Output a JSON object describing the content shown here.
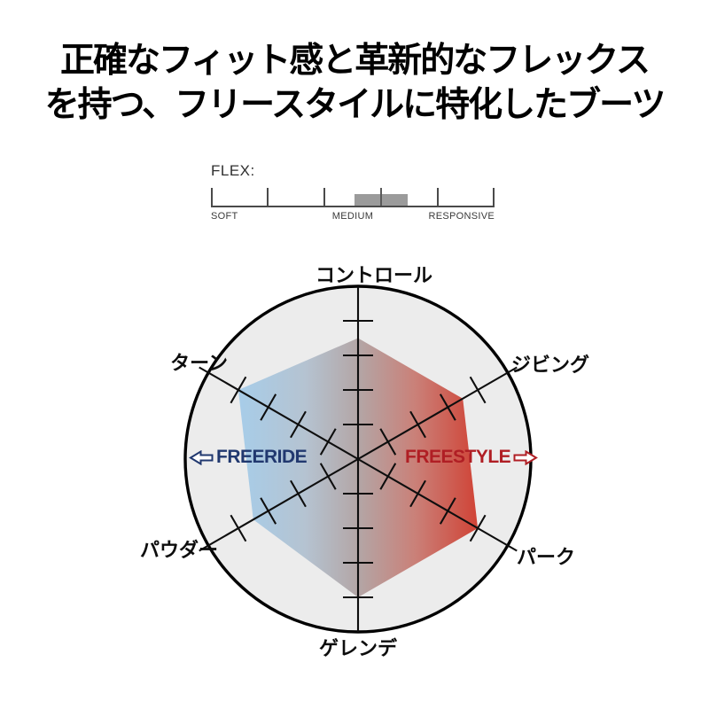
{
  "heading": {
    "line1": "正確なフィット感と革新的なフレックス",
    "line2": "を持つ、フリースタイルに特化したブーツ"
  },
  "flex_meter": {
    "title": "FLEX:",
    "scale_labels": [
      "SOFT",
      "MEDIUM",
      "RESPONSIVE"
    ],
    "indicator_position_pct": 60,
    "colors": {
      "scale": "#4a4a4a",
      "indicator": "#9b9b9b",
      "label_text": "#3a3a3a"
    }
  },
  "chart_data": {
    "type": "radar",
    "max": 5,
    "tick_step": 1,
    "axes": [
      {
        "label": "コントロール",
        "value": 3.5,
        "angle_deg": 90
      },
      {
        "label": "ジビング",
        "value": 3.5,
        "angle_deg": 30
      },
      {
        "label": "パーク",
        "value": 4,
        "angle_deg": -30
      },
      {
        "label": "ゲレンデ",
        "value": 4,
        "angle_deg": -90
      },
      {
        "label": "パウダー",
        "value": 3.5,
        "angle_deg": -150
      },
      {
        "label": "ターン",
        "value": 4,
        "angle_deg": 150
      }
    ],
    "ride_styles": {
      "left": {
        "label": "FREERIDE",
        "color": "#21386f",
        "arrow": "left"
      },
      "right": {
        "label": "FREESTYLE",
        "color": "#b01e24",
        "arrow": "right"
      }
    },
    "polygon_gradient": [
      "#a7cde9",
      "#b5c3d1",
      "#b3a6a6",
      "#ca8078",
      "#d04336"
    ],
    "circle_fill": "#ececec",
    "axis_color": "#0e0e0e"
  }
}
